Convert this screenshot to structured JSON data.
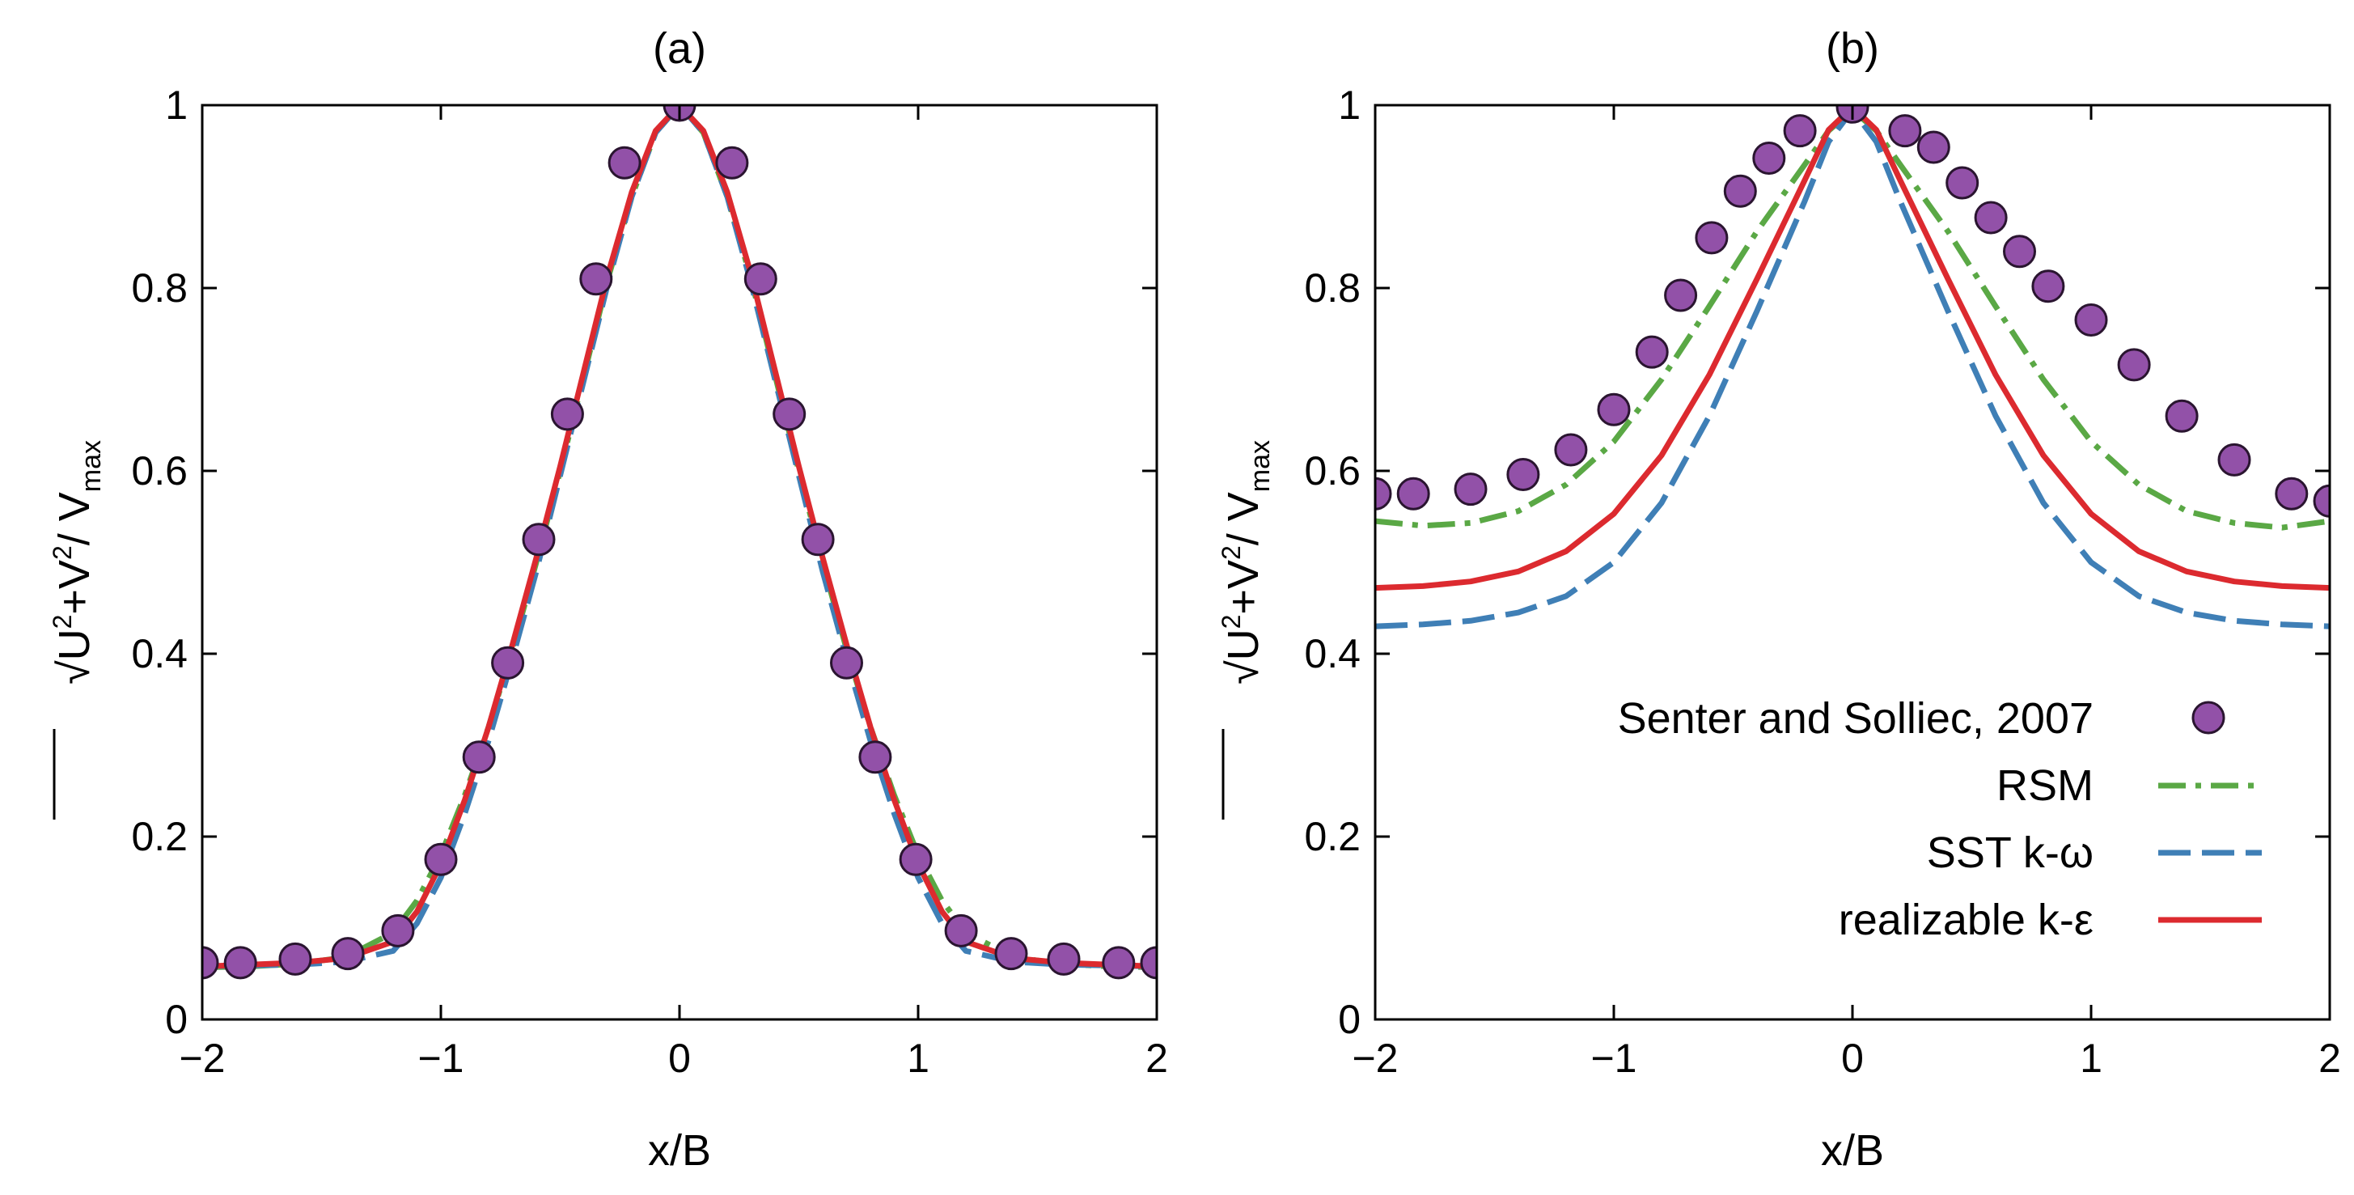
{
  "chart_data": [
    {
      "type": "line",
      "title": "(a)",
      "xlabel": "x/B",
      "ylabel": {
        "base": "√U²+V²/ V",
        "sub": "max",
        "radical": "√",
        "u": "U",
        "plus_v": "+V",
        "sq": "2",
        "slash_v": "/ V"
      },
      "xlim": [
        -2,
        2
      ],
      "ylim": [
        0,
        1
      ],
      "xticks": [
        -2,
        -1,
        0,
        1,
        2
      ],
      "xtick_labels": [
        "−2",
        "−1",
        "0",
        "1",
        "2"
      ],
      "yticks": [
        0,
        0.2,
        0.4,
        0.6,
        0.8,
        1
      ],
      "ytick_labels": [
        "0",
        "0.2",
        "0.4",
        "0.6",
        "0.8",
        "1"
      ],
      "grid": false,
      "series": [
        {
          "name": "Senter and Solliec, 2007",
          "kind": "scatter",
          "x": [
            -2.0,
            -1.84,
            -1.61,
            -1.39,
            -1.18,
            -1.0,
            -0.84,
            -0.72,
            -0.59,
            -0.47,
            -0.35,
            -0.23,
            0.0,
            0.22,
            0.34,
            0.46,
            0.58,
            0.7,
            0.82,
            0.99,
            1.18,
            1.39,
            1.61,
            1.84,
            2.0
          ],
          "y": [
            0.062,
            0.062,
            0.066,
            0.072,
            0.097,
            0.175,
            0.287,
            0.39,
            0.525,
            0.662,
            0.81,
            0.937,
            1.0,
            0.937,
            0.81,
            0.662,
            0.525,
            0.39,
            0.287,
            0.175,
            0.097,
            0.072,
            0.066,
            0.062,
            0.062
          ]
        },
        {
          "name": "RSM",
          "kind": "line",
          "x": [
            -2.0,
            -1.8,
            -1.6,
            -1.4,
            -1.2,
            -1.1,
            -1.0,
            -0.9,
            -0.8,
            -0.7,
            -0.6,
            -0.5,
            -0.4,
            -0.3,
            -0.2,
            -0.1,
            0.0,
            0.1,
            0.2,
            0.3,
            0.4,
            0.5,
            0.6,
            0.7,
            0.8,
            0.9,
            1.0,
            1.1,
            1.2,
            1.4,
            1.6,
            1.8,
            2.0
          ],
          "y": [
            0.057,
            0.058,
            0.061,
            0.068,
            0.095,
            0.13,
            0.18,
            0.245,
            0.32,
            0.405,
            0.5,
            0.6,
            0.705,
            0.81,
            0.9,
            0.97,
            1.0,
            0.97,
            0.9,
            0.81,
            0.705,
            0.6,
            0.5,
            0.405,
            0.32,
            0.245,
            0.18,
            0.13,
            0.095,
            0.068,
            0.061,
            0.058,
            0.057
          ]
        },
        {
          "name": "SST k-ω",
          "kind": "line",
          "x": [
            -2.0,
            -1.8,
            -1.6,
            -1.4,
            -1.2,
            -1.1,
            -1.0,
            -0.9,
            -0.8,
            -0.7,
            -0.6,
            -0.5,
            -0.4,
            -0.3,
            -0.2,
            -0.1,
            0.0,
            0.1,
            0.2,
            0.3,
            0.4,
            0.5,
            0.6,
            0.7,
            0.8,
            0.9,
            1.0,
            1.1,
            1.2,
            1.4,
            1.6,
            1.8,
            2.0
          ],
          "y": [
            0.058,
            0.059,
            0.06,
            0.063,
            0.075,
            0.105,
            0.155,
            0.225,
            0.305,
            0.395,
            0.49,
            0.595,
            0.7,
            0.805,
            0.9,
            0.97,
            1.0,
            0.97,
            0.9,
            0.805,
            0.7,
            0.595,
            0.49,
            0.395,
            0.305,
            0.225,
            0.155,
            0.105,
            0.075,
            0.063,
            0.06,
            0.059,
            0.058
          ]
        },
        {
          "name": "realizable k-ε",
          "kind": "line",
          "x": [
            -2.0,
            -1.8,
            -1.6,
            -1.4,
            -1.2,
            -1.1,
            -1.0,
            -0.9,
            -0.8,
            -0.7,
            -0.6,
            -0.5,
            -0.4,
            -0.3,
            -0.2,
            -0.1,
            0.0,
            0.1,
            0.2,
            0.3,
            0.4,
            0.5,
            0.6,
            0.7,
            0.8,
            0.9,
            1.0,
            1.1,
            1.2,
            1.4,
            1.6,
            1.8,
            2.0
          ],
          "y": [
            0.058,
            0.06,
            0.062,
            0.067,
            0.085,
            0.118,
            0.17,
            0.24,
            0.32,
            0.41,
            0.505,
            0.605,
            0.71,
            0.815,
            0.905,
            0.972,
            1.0,
            0.972,
            0.905,
            0.815,
            0.71,
            0.605,
            0.505,
            0.41,
            0.32,
            0.24,
            0.17,
            0.118,
            0.085,
            0.067,
            0.062,
            0.06,
            0.058
          ]
        }
      ]
    },
    {
      "type": "line",
      "title": "(b)",
      "xlabel": "x/B",
      "ylabel": {
        "base": "√U²+V²/ V",
        "sub": "max",
        "radical": "√",
        "u": "U",
        "plus_v": "+V",
        "sq": "2",
        "slash_v": "/ V"
      },
      "xlim": [
        -2,
        2
      ],
      "ylim": [
        0,
        1
      ],
      "xticks": [
        -2,
        -1,
        0,
        1,
        2
      ],
      "xtick_labels": [
        "−2",
        "−1",
        "0",
        "1",
        "2"
      ],
      "yticks": [
        0,
        0.2,
        0.4,
        0.6,
        0.8,
        1
      ],
      "ytick_labels": [
        "0",
        "0.2",
        "0.4",
        "0.6",
        "0.8",
        "1"
      ],
      "grid": false,
      "legend": "lower-right",
      "series": [
        {
          "name": "Senter and Solliec, 2007",
          "kind": "scatter",
          "x": [
            -2.0,
            -1.84,
            -1.6,
            -1.38,
            -1.18,
            -1.0,
            -0.84,
            -0.72,
            -0.59,
            -0.47,
            -0.35,
            -0.22,
            0.0,
            0.22,
            0.34,
            0.46,
            0.58,
            0.7,
            0.82,
            1.0,
            1.18,
            1.38,
            1.6,
            1.84,
            2.0
          ],
          "y": [
            0.575,
            0.575,
            0.58,
            0.596,
            0.623,
            0.667,
            0.73,
            0.792,
            0.855,
            0.906,
            0.942,
            0.972,
            0.998,
            0.972,
            0.954,
            0.915,
            0.877,
            0.84,
            0.802,
            0.765,
            0.716,
            0.66,
            0.612,
            0.575,
            0.567
          ]
        },
        {
          "name": "RSM",
          "kind": "line",
          "x": [
            -2.0,
            -1.8,
            -1.6,
            -1.4,
            -1.2,
            -1.0,
            -0.8,
            -0.6,
            -0.4,
            -0.2,
            -0.1,
            0.0,
            0.1,
            0.2,
            0.4,
            0.6,
            0.8,
            1.0,
            1.2,
            1.4,
            1.6,
            1.8,
            2.0
          ],
          "y": [
            0.545,
            0.54,
            0.543,
            0.556,
            0.585,
            0.632,
            0.7,
            0.78,
            0.862,
            0.935,
            0.972,
            0.995,
            0.972,
            0.935,
            0.862,
            0.78,
            0.7,
            0.632,
            0.585,
            0.556,
            0.543,
            0.538,
            0.545
          ]
        },
        {
          "name": "SST k-ω",
          "kind": "line",
          "x": [
            -2.0,
            -1.8,
            -1.6,
            -1.4,
            -1.2,
            -1.0,
            -0.8,
            -0.6,
            -0.4,
            -0.2,
            -0.1,
            0.0,
            0.1,
            0.2,
            0.4,
            0.6,
            0.8,
            1.0,
            1.2,
            1.4,
            1.6,
            1.8,
            2.0
          ],
          "y": [
            0.43,
            0.432,
            0.436,
            0.445,
            0.463,
            0.5,
            0.565,
            0.66,
            0.775,
            0.895,
            0.96,
            0.995,
            0.96,
            0.895,
            0.775,
            0.66,
            0.565,
            0.5,
            0.463,
            0.445,
            0.436,
            0.432,
            0.43
          ]
        },
        {
          "name": "realizable k-ε",
          "kind": "line",
          "x": [
            -2.0,
            -1.8,
            -1.6,
            -1.4,
            -1.2,
            -1.0,
            -0.8,
            -0.6,
            -0.4,
            -0.2,
            -0.1,
            0.0,
            0.1,
            0.2,
            0.4,
            0.6,
            0.8,
            1.0,
            1.2,
            1.4,
            1.6,
            1.8,
            2.0
          ],
          "y": [
            0.472,
            0.474,
            0.479,
            0.49,
            0.512,
            0.553,
            0.617,
            0.705,
            0.81,
            0.918,
            0.973,
            0.998,
            0.973,
            0.918,
            0.81,
            0.705,
            0.617,
            0.553,
            0.512,
            0.49,
            0.479,
            0.474,
            0.472
          ]
        }
      ]
    }
  ],
  "legend": [
    {
      "label": "Senter and Solliec, 2007",
      "style": "marker"
    },
    {
      "label": "RSM",
      "style": "dashdot"
    },
    {
      "label": "SST k-ω",
      "style": "dashed"
    },
    {
      "label": "realizable k-ε",
      "style": "solid"
    }
  ],
  "colors": {
    "RSM": "#5aa845",
    "SST k-ω": "#3f7fb6",
    "realizable k-ε": "#dc2a2f",
    "marker_fill": "#9251a8",
    "marker_edge": "#2a1530",
    "axes": "#000000"
  }
}
